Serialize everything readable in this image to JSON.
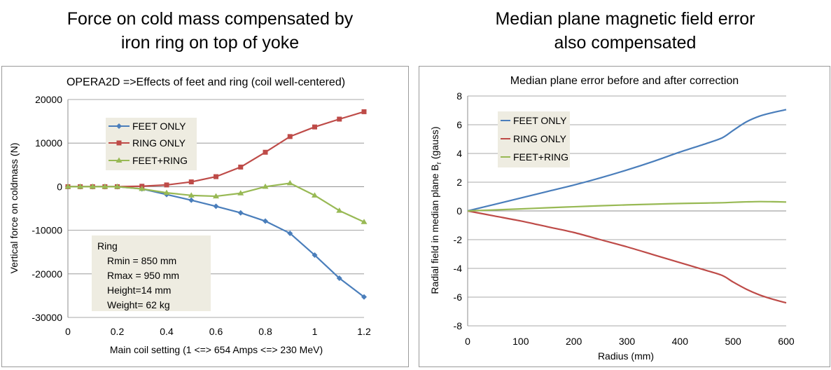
{
  "headings": {
    "left": [
      "Force on cold mass compensated by",
      "iron ring on top of yoke"
    ],
    "right": [
      "Median plane magnetic field error",
      "also compensated"
    ]
  },
  "colors": {
    "feet": "#4a7ebb",
    "ring": "#be4b48",
    "feetring": "#98b954",
    "box": "#eeece1"
  },
  "chart_data": [
    {
      "type": "line",
      "title": "OPERA2D =>Effects of feet and ring (coil well-centered)",
      "xlabel": "Main coil setting (1 <=> 654 Amps <=> 230 MeV)",
      "ylabel": "Vertical force on coldmass (N)",
      "xlim": [
        0,
        1.2
      ],
      "ylim": [
        -30000,
        20000
      ],
      "xticks": [
        0,
        0.2,
        0.4,
        0.6,
        0.8,
        1,
        1.2
      ],
      "xtick_labels": [
        "0",
        "0.2",
        "0.4",
        "0.6",
        "0.8",
        "1",
        "1.2"
      ],
      "yticks": [
        -30000,
        -20000,
        -10000,
        0,
        10000,
        20000
      ],
      "ytick_labels": [
        "-30000",
        "-20000",
        "-10000",
        "0",
        "10000",
        "20000"
      ],
      "grid": "horizontal",
      "legend": "upper-left",
      "x": [
        0,
        0.05,
        0.1,
        0.15,
        0.2,
        0.3,
        0.4,
        0.5,
        0.6,
        0.7,
        0.8,
        0.9,
        1.0,
        1.1,
        1.2
      ],
      "series": [
        {
          "key": "feet",
          "name": "FEET ONLY",
          "marker": "diamond",
          "values": [
            0,
            0,
            0,
            0,
            0,
            -500,
            -1800,
            -3100,
            -4500,
            -6000,
            -7900,
            -10700,
            -15700,
            -21000,
            -25300
          ]
        },
        {
          "key": "ring",
          "name": "RING ONLY",
          "marker": "square",
          "values": [
            0,
            0,
            0,
            0,
            0,
            100,
            400,
            1100,
            2300,
            4500,
            7900,
            11500,
            13700,
            15500,
            17200
          ]
        },
        {
          "key": "feetring",
          "name": "FEET+RING",
          "marker": "triangle",
          "values": [
            0,
            0,
            0,
            0,
            0,
            -500,
            -1400,
            -2000,
            -2200,
            -1500,
            0,
            800,
            -2000,
            -5500,
            -8100
          ]
        }
      ],
      "annotation": {
        "title": "Ring",
        "lines": [
          "Rmin = 850 mm",
          "Rmax = 950 mm",
          "Height=14 mm",
          "Weight= 62 kg"
        ]
      }
    },
    {
      "type": "line",
      "title": "Median plane error before and after correction",
      "xlabel": "Radius (mm)",
      "ylabel": "Radial field in median plane B",
      "ylabel_sub": "r",
      "ylabel_tail": " (gauss)",
      "xlim": [
        0,
        600
      ],
      "ylim": [
        -8,
        8
      ],
      "xticks": [
        0,
        100,
        200,
        300,
        400,
        500,
        600
      ],
      "xtick_labels": [
        "0",
        "100",
        "200",
        "300",
        "400",
        "500",
        "600"
      ],
      "yticks": [
        -8,
        -6,
        -4,
        -2,
        0,
        2,
        4,
        6,
        8
      ],
      "ytick_labels": [
        "-8",
        "-6",
        "-4",
        "-2",
        "0",
        "2",
        "4",
        "6",
        "8"
      ],
      "grid": "horizontal",
      "legend": "upper-left",
      "x": [
        0,
        50,
        100,
        150,
        200,
        250,
        300,
        350,
        400,
        450,
        480,
        500,
        525,
        550,
        575,
        600
      ],
      "series": [
        {
          "key": "feet",
          "name": "FEET ONLY",
          "values": [
            0,
            0.45,
            0.9,
            1.35,
            1.8,
            2.3,
            2.85,
            3.45,
            4.1,
            4.7,
            5.1,
            5.6,
            6.2,
            6.6,
            6.85,
            7.05
          ]
        },
        {
          "key": "ring",
          "name": "RING ONLY",
          "values": [
            0,
            -0.35,
            -0.7,
            -1.1,
            -1.5,
            -2.0,
            -2.5,
            -3.05,
            -3.6,
            -4.15,
            -4.5,
            -4.95,
            -5.45,
            -5.85,
            -6.15,
            -6.4
          ]
        },
        {
          "key": "feetring",
          "name": "FEET+RING",
          "values": [
            0,
            0.07,
            0.14,
            0.22,
            0.29,
            0.36,
            0.42,
            0.47,
            0.52,
            0.55,
            0.57,
            0.6,
            0.63,
            0.65,
            0.64,
            0.62
          ]
        }
      ]
    }
  ]
}
